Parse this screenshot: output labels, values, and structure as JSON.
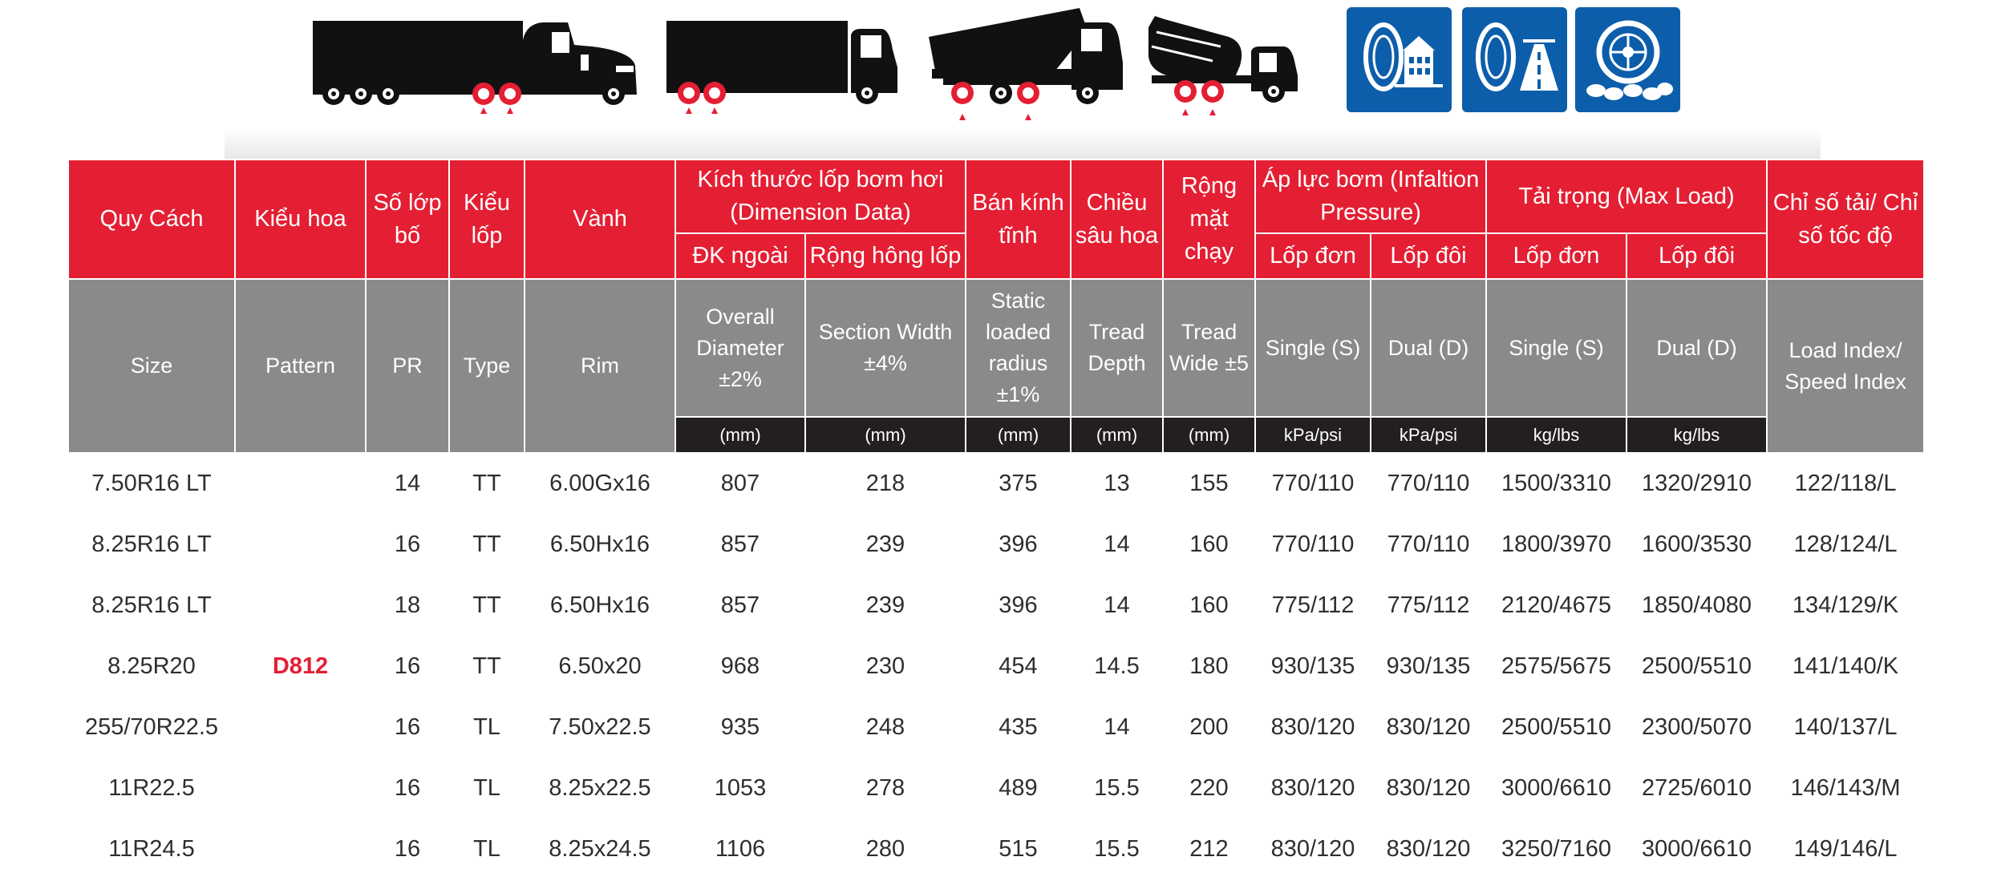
{
  "header": {
    "vn": {
      "size": "Quy Cách",
      "pattern": "Kiểu hoa",
      "pr": "Số lớp bố",
      "type": "Kiểu lốp",
      "rim": "Vành",
      "dimension": "Kích thước lốp bơm hơi (Dimension Data)",
      "overall_diameter": "ĐK ngoài",
      "section_width": "Rộng hông lốp",
      "static_radius": "Bán kính tĩnh",
      "tread_depth": "Chiều sâu hoa",
      "tread_wide": "Rộng mặt chạy",
      "pressure": "Áp lực bơm (Infaltion Pressure)",
      "pressure_single": "Lốp đơn",
      "pressure_dual": "Lốp đôi",
      "load": "Tải trọng (Max Load)",
      "load_single": "Lốp đơn",
      "load_dual": "Lốp đôi",
      "index": "Chỉ số tải/ Chỉ số tốc độ"
    },
    "en": {
      "size": "Size",
      "pattern": "Pattern",
      "pr": "PR",
      "type": "Type",
      "rim": "Rim",
      "overall_diameter": "Overall Diameter ±2%",
      "section_width": "Section Width ±4%",
      "static_radius": "Static loaded radius ±1%",
      "tread_depth": "Tread Depth",
      "tread_wide": "Tread Wide ±5",
      "pressure_single": "Single (S)",
      "pressure_dual": "Dual (D)",
      "load_single": "Single (S)",
      "load_dual": "Dual (D)",
      "index": "Load Index/ Speed Index"
    },
    "units": {
      "overall_diameter": "(mm)",
      "section_width": "(mm)",
      "static_radius": "(mm)",
      "tread_depth": "(mm)",
      "tread_wide": "(mm)",
      "pressure_single": "kPa/psi",
      "pressure_dual": "kPa/psi",
      "load_single": "kg/lbs",
      "load_dual": "kg/lbs"
    }
  },
  "pattern_name": "D812",
  "rows": [
    {
      "size": "7.50R16 LT",
      "pr": "14",
      "type": "TT",
      "rim": "6.00Gx16",
      "od": "807",
      "sw": "218",
      "slr": "375",
      "td": "13",
      "tw": "155",
      "ps": "770/110",
      "pd": "770/110",
      "ls": "1500/3310",
      "ld": "1320/2910",
      "idx": "122/118/L"
    },
    {
      "size": "8.25R16 LT",
      "pr": "16",
      "type": "TT",
      "rim": "6.50Hx16",
      "od": "857",
      "sw": "239",
      "slr": "396",
      "td": "14",
      "tw": "160",
      "ps": "770/110",
      "pd": "770/110",
      "ls": "1800/3970",
      "ld": "1600/3530",
      "idx": "128/124/L"
    },
    {
      "size": "8.25R16 LT",
      "pr": "18",
      "type": "TT",
      "rim": "6.50Hx16",
      "od": "857",
      "sw": "239",
      "slr": "396",
      "td": "14",
      "tw": "160",
      "ps": "775/112",
      "pd": "775/112",
      "ls": "2120/4675",
      "ld": "1850/4080",
      "idx": "134/129/K"
    },
    {
      "size": "8.25R20",
      "pr": "16",
      "type": "TT",
      "rim": "6.50x20",
      "od": "968",
      "sw": "230",
      "slr": "454",
      "td": "14.5",
      "tw": "180",
      "ps": "930/135",
      "pd": "930/135",
      "ls": "2575/5675",
      "ld": "2500/5510",
      "idx": "141/140/K"
    },
    {
      "size": "255/70R22.5",
      "pr": "16",
      "type": "TL",
      "rim": "7.50x22.5",
      "od": "935",
      "sw": "248",
      "slr": "435",
      "td": "14",
      "tw": "200",
      "ps": "830/120",
      "pd": "830/120",
      "ls": "2500/5510",
      "ld": "2300/5070",
      "idx": "140/137/L"
    },
    {
      "size": "11R22.5",
      "pr": "16",
      "type": "TL",
      "rim": "8.25x22.5",
      "od": "1053",
      "sw": "278",
      "slr": "489",
      "td": "15.5",
      "tw": "220",
      "ps": "830/120",
      "pd": "830/120",
      "ls": "3000/6610",
      "ld": "2725/6010",
      "idx": "146/143/M"
    },
    {
      "size": "11R24.5",
      "pr": "16",
      "type": "TL",
      "rim": "8.25x24.5",
      "od": "1106",
      "sw": "280",
      "slr": "515",
      "td": "15.5",
      "tw": "212",
      "ps": "830/120",
      "pd": "830/120",
      "ls": "3250/7160",
      "ld": "3000/6610",
      "idx": "149/146/L"
    }
  ],
  "colors": {
    "header_red": "#e41f33",
    "header_gray": "#8a8a8c",
    "unit_black": "#231f20",
    "badge_blue": "#0d5eaa",
    "wheel_red": "#e41f33"
  },
  "icons": [
    "semi-truck-icon",
    "box-truck-icon",
    "dump-truck-icon",
    "mixer-truck-icon",
    "tire-city-icon",
    "tire-highway-icon",
    "tire-offroad-icon"
  ]
}
